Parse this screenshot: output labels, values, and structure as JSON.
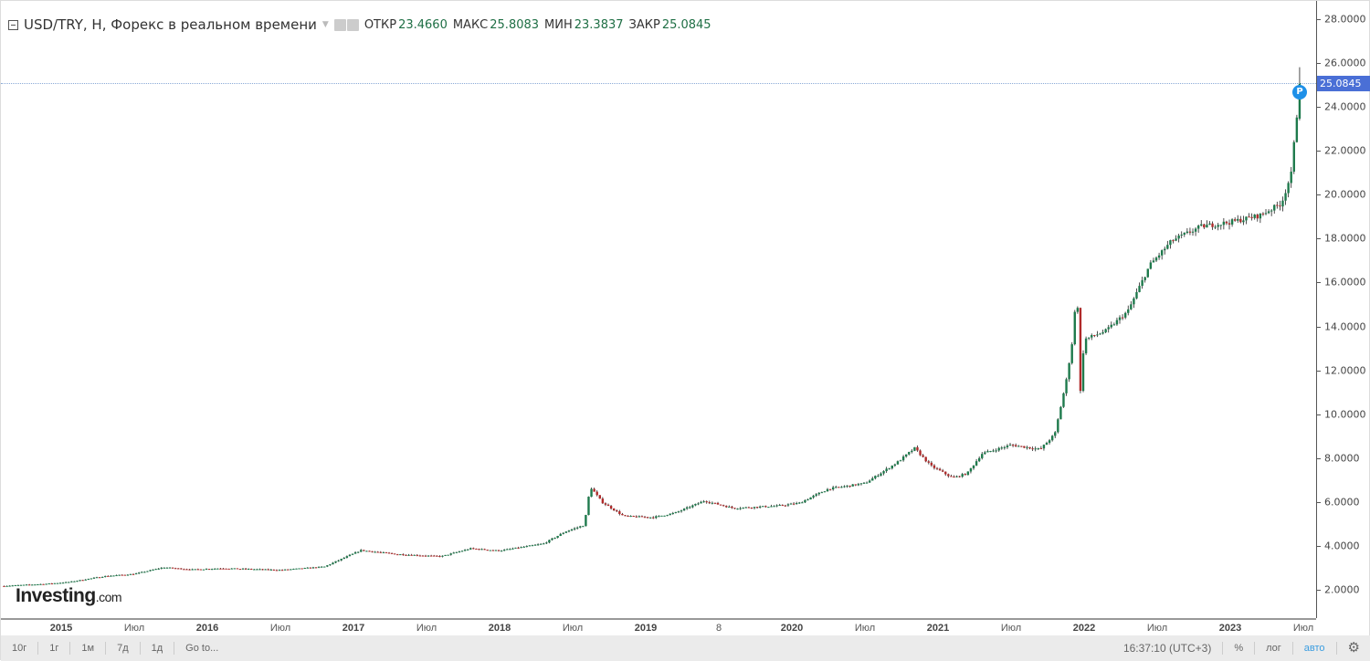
{
  "header": {
    "title": "USD/TRY, H, Форекс в реальном времени",
    "open_label": "ОТКР",
    "open": "23.4660",
    "high_label": "МАКС",
    "high": "25.8083",
    "low_label": "МИН",
    "low": "23.3837",
    "close_label": "ЗАКР",
    "close": "25.0845"
  },
  "price_marker": {
    "label": "P",
    "value": "25.0845"
  },
  "logo": {
    "main": "Investing",
    "suffix": ".com"
  },
  "toolbar": {
    "ranges": [
      "10г",
      "1г",
      "1м",
      "7д",
      "1д"
    ],
    "goto": "Go to...",
    "time": "16:37:10 (UTC+3)",
    "percent": "%",
    "log": "лог",
    "auto": "авто"
  },
  "colors": {
    "up": "#1e7a4c",
    "down": "#b02a2a",
    "accent": "#4a6fd6"
  },
  "chart_data": {
    "type": "candlestick",
    "title": "USD/TRY",
    "ylim": [
      2,
      28
    ],
    "yticks": [
      "2.0000",
      "4.0000",
      "6.0000",
      "8.0000",
      "10.0000",
      "12.0000",
      "14.0000",
      "16.0000",
      "18.0000",
      "20.0000",
      "22.0000",
      "24.0000",
      "26.0000",
      "28.0000"
    ],
    "ytick_values": [
      2,
      4,
      6,
      8,
      10,
      12,
      14,
      16,
      18,
      20,
      22,
      24,
      26,
      28
    ],
    "xlim": [
      2014.59,
      2023.9
    ],
    "xticks": [
      {
        "t": 2015,
        "label": "2015",
        "bold": true
      },
      {
        "t": 2015.5,
        "label": "Июл"
      },
      {
        "t": 2016,
        "label": "2016",
        "bold": true
      },
      {
        "t": 2016.5,
        "label": "Июл"
      },
      {
        "t": 2017,
        "label": "2017",
        "bold": true
      },
      {
        "t": 2017.5,
        "label": "Июл"
      },
      {
        "t": 2018,
        "label": "2018",
        "bold": true
      },
      {
        "t": 2018.5,
        "label": "Июл"
      },
      {
        "t": 2019,
        "label": "2019",
        "bold": true
      },
      {
        "t": 2019.5,
        "label": "8"
      },
      {
        "t": 2020,
        "label": "2020",
        "bold": true
      },
      {
        "t": 2020.5,
        "label": "Июл"
      },
      {
        "t": 2021,
        "label": "2021",
        "bold": true
      },
      {
        "t": 2021.5,
        "label": "Июл"
      },
      {
        "t": 2022,
        "label": "2022",
        "bold": true
      },
      {
        "t": 2022.5,
        "label": "Июл"
      },
      {
        "t": 2023,
        "label": "2023",
        "bold": true
      },
      {
        "t": 2023.5,
        "label": "Июл"
      }
    ],
    "series_anchors": [
      [
        2014.59,
        2.17
      ],
      [
        2014.9,
        2.27
      ],
      [
        2015.05,
        2.35
      ],
      [
        2015.3,
        2.62
      ],
      [
        2015.5,
        2.72
      ],
      [
        2015.7,
        3.02
      ],
      [
        2015.9,
        2.92
      ],
      [
        2016.1,
        2.98
      ],
      [
        2016.5,
        2.9
      ],
      [
        2016.8,
        3.05
      ],
      [
        2016.95,
        3.5
      ],
      [
        2017.05,
        3.8
      ],
      [
        2017.3,
        3.62
      ],
      [
        2017.6,
        3.52
      ],
      [
        2017.8,
        3.88
      ],
      [
        2018.0,
        3.78
      ],
      [
        2018.3,
        4.1
      ],
      [
        2018.45,
        4.65
      ],
      [
        2018.58,
        4.95
      ],
      [
        2018.62,
        6.7
      ],
      [
        2018.7,
        6.0
      ],
      [
        2018.85,
        5.35
      ],
      [
        2019.05,
        5.3
      ],
      [
        2019.2,
        5.5
      ],
      [
        2019.4,
        6.05
      ],
      [
        2019.6,
        5.72
      ],
      [
        2019.9,
        5.82
      ],
      [
        2020.05,
        5.95
      ],
      [
        2020.25,
        6.6
      ],
      [
        2020.5,
        6.85
      ],
      [
        2020.72,
        7.8
      ],
      [
        2020.84,
        8.45
      ],
      [
        2020.95,
        7.65
      ],
      [
        2021.1,
        7.1
      ],
      [
        2021.2,
        7.3
      ],
      [
        2021.3,
        8.2
      ],
      [
        2021.5,
        8.6
      ],
      [
        2021.7,
        8.4
      ],
      [
        2021.8,
        9.1
      ],
      [
        2021.88,
        11.6
      ],
      [
        2021.93,
        13.8
      ],
      [
        2021.95,
        16.5
      ],
      [
        2021.97,
        10.6
      ],
      [
        2022.0,
        13.4
      ],
      [
        2022.15,
        13.8
      ],
      [
        2022.3,
        14.7
      ],
      [
        2022.45,
        16.8
      ],
      [
        2022.6,
        17.9
      ],
      [
        2022.8,
        18.55
      ],
      [
        2023.0,
        18.75
      ],
      [
        2023.2,
        19.05
      ],
      [
        2023.35,
        19.6
      ],
      [
        2023.42,
        21.0
      ],
      [
        2023.45,
        23.4
      ],
      [
        2023.49,
        25.08
      ]
    ],
    "last": {
      "open": 23.466,
      "high": 25.8083,
      "low": 23.3837,
      "close": 25.0845
    }
  }
}
